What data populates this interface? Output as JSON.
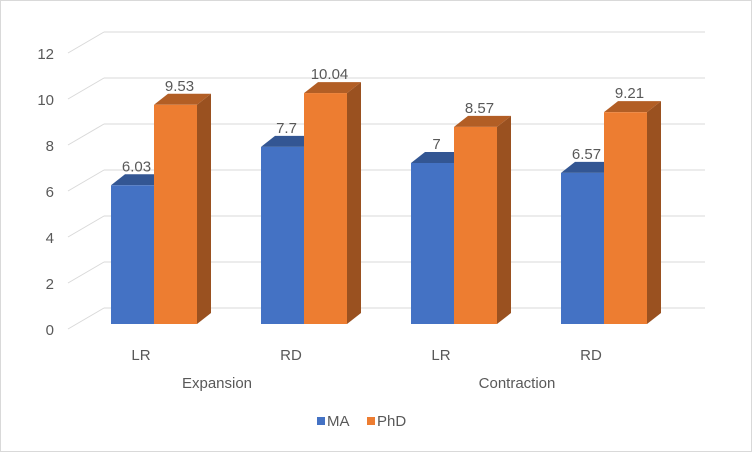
{
  "chart_data": {
    "type": "bar",
    "style": "3d-clustered-column",
    "title": "",
    "xlabel": "",
    "ylabel": "",
    "ylim": [
      0,
      12
    ],
    "yticks": [
      "0",
      "2",
      "4",
      "6",
      "8",
      "10",
      "12"
    ],
    "grid": true,
    "groups": [
      {
        "label": "Expansion",
        "categories": [
          "LR",
          "RD"
        ]
      },
      {
        "label": "Contraction",
        "categories": [
          "LR",
          "RD"
        ]
      }
    ],
    "categories": [
      "LR",
      "RD",
      "LR",
      "RD"
    ],
    "series": [
      {
        "name": "MA",
        "color": "#4472C4",
        "values": [
          6.03,
          7.7,
          7,
          6.57
        ],
        "labels": [
          "6.03",
          "7.7",
          "7",
          "6.57"
        ]
      },
      {
        "name": "PhD",
        "color": "#ED7D31",
        "values": [
          9.53,
          10.04,
          8.57,
          9.21
        ],
        "labels": [
          "9.53",
          "10.04",
          "8.57",
          "9.21"
        ]
      }
    ],
    "legend": {
      "position": "bottom",
      "items": [
        "MA",
        "PhD"
      ]
    }
  }
}
